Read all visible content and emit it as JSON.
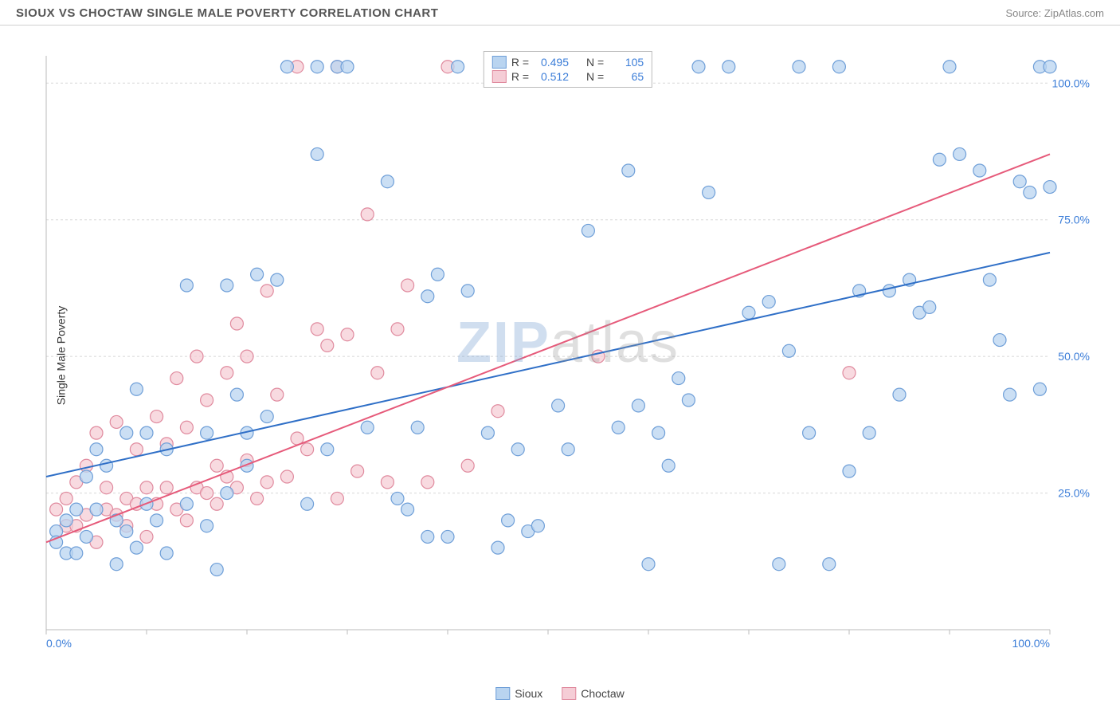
{
  "header": {
    "title": "SIOUX VS CHOCTAW SINGLE MALE POVERTY CORRELATION CHART",
    "source_label": "Source: ",
    "source_value": "ZipAtlas.com"
  },
  "chart": {
    "type": "scatter",
    "ylabel": "Single Male Poverty",
    "xlim": [
      0,
      100
    ],
    "ylim": [
      0,
      105
    ],
    "xtick_positions": [
      0,
      10,
      20,
      30,
      40,
      50,
      60,
      70,
      80,
      90,
      100
    ],
    "xtick_labels": {
      "0": "0.0%",
      "100": "100.0%"
    },
    "ytick_positions": [
      25,
      50,
      75,
      100
    ],
    "ytick_labels": [
      "25.0%",
      "50.0%",
      "75.0%",
      "100.0%"
    ],
    "grid_color": "#d8d8d8",
    "axis_color": "#bbbbbb",
    "background_color": "#ffffff",
    "tick_label_color": "#3b7dd8",
    "tick_label_fontsize": 14,
    "label_color": "#333333",
    "label_fontsize": 14,
    "marker_radius": 8,
    "marker_stroke_width": 1.2,
    "trendline_width": 2,
    "watermark_text_a": "ZIP",
    "watermark_text_b": "atlas",
    "series": [
      {
        "name": "Sioux",
        "fill_color": "#b9d4f0",
        "stroke_color": "#6f9fd8",
        "trend_color": "#2f6fc7",
        "R": "0.495",
        "N": "105",
        "trend": {
          "x1": 0,
          "y1": 28,
          "x2": 100,
          "y2": 69
        },
        "points": [
          [
            1,
            18
          ],
          [
            1,
            16
          ],
          [
            2,
            14
          ],
          [
            2,
            20
          ],
          [
            3,
            14
          ],
          [
            3,
            22
          ],
          [
            4,
            17
          ],
          [
            4,
            28
          ],
          [
            5,
            22
          ],
          [
            5,
            33
          ],
          [
            6,
            30
          ],
          [
            7,
            20
          ],
          [
            7,
            12
          ],
          [
            8,
            18
          ],
          [
            8,
            36
          ],
          [
            9,
            15
          ],
          [
            9,
            44
          ],
          [
            10,
            23
          ],
          [
            10,
            36
          ],
          [
            11,
            20
          ],
          [
            12,
            14
          ],
          [
            12,
            33
          ],
          [
            14,
            23
          ],
          [
            14,
            63
          ],
          [
            16,
            19
          ],
          [
            16,
            36
          ],
          [
            17,
            11
          ],
          [
            18,
            25
          ],
          [
            18,
            63
          ],
          [
            19,
            43
          ],
          [
            20,
            30
          ],
          [
            20,
            36
          ],
          [
            21,
            65
          ],
          [
            22,
            39
          ],
          [
            23,
            64
          ],
          [
            24,
            103
          ],
          [
            26,
            23
          ],
          [
            27,
            103
          ],
          [
            27,
            87
          ],
          [
            28,
            33
          ],
          [
            29,
            103
          ],
          [
            30,
            103
          ],
          [
            32,
            37
          ],
          [
            34,
            82
          ],
          [
            35,
            24
          ],
          [
            36,
            22
          ],
          [
            37,
            37
          ],
          [
            38,
            61
          ],
          [
            38,
            17
          ],
          [
            39,
            65
          ],
          [
            40,
            17
          ],
          [
            41,
            103
          ],
          [
            42,
            62
          ],
          [
            44,
            36
          ],
          [
            45,
            15
          ],
          [
            46,
            20
          ],
          [
            47,
            33
          ],
          [
            48,
            18
          ],
          [
            49,
            19
          ],
          [
            50,
            103
          ],
          [
            51,
            41
          ],
          [
            52,
            33
          ],
          [
            54,
            73
          ],
          [
            55,
            103
          ],
          [
            56,
            103
          ],
          [
            57,
            37
          ],
          [
            58,
            84
          ],
          [
            59,
            41
          ],
          [
            60,
            12
          ],
          [
            61,
            36
          ],
          [
            62,
            30
          ],
          [
            63,
            46
          ],
          [
            64,
            42
          ],
          [
            65,
            103
          ],
          [
            66,
            80
          ],
          [
            68,
            103
          ],
          [
            70,
            58
          ],
          [
            72,
            60
          ],
          [
            73,
            12
          ],
          [
            74,
            51
          ],
          [
            75,
            103
          ],
          [
            76,
            36
          ],
          [
            78,
            12
          ],
          [
            79,
            103
          ],
          [
            80,
            29
          ],
          [
            81,
            62
          ],
          [
            82,
            36
          ],
          [
            84,
            62
          ],
          [
            85,
            43
          ],
          [
            86,
            64
          ],
          [
            87,
            58
          ],
          [
            88,
            59
          ],
          [
            89,
            86
          ],
          [
            90,
            103
          ],
          [
            91,
            87
          ],
          [
            93,
            84
          ],
          [
            94,
            64
          ],
          [
            95,
            53
          ],
          [
            96,
            43
          ],
          [
            97,
            82
          ],
          [
            98,
            80
          ],
          [
            99,
            44
          ],
          [
            99,
            103
          ],
          [
            100,
            103
          ],
          [
            100,
            81
          ]
        ]
      },
      {
        "name": "Choctaw",
        "fill_color": "#f5cdd6",
        "stroke_color": "#e08a9e",
        "trend_color": "#e65a7a",
        "R": "0.512",
        "N": "65",
        "trend": {
          "x1": 0,
          "y1": 16,
          "x2": 100,
          "y2": 87
        },
        "points": [
          [
            1,
            22
          ],
          [
            2,
            19
          ],
          [
            2,
            24
          ],
          [
            3,
            19
          ],
          [
            3,
            27
          ],
          [
            4,
            21
          ],
          [
            4,
            30
          ],
          [
            5,
            16
          ],
          [
            5,
            36
          ],
          [
            6,
            22
          ],
          [
            6,
            26
          ],
          [
            7,
            21
          ],
          [
            7,
            38
          ],
          [
            8,
            19
          ],
          [
            8,
            24
          ],
          [
            9,
            23
          ],
          [
            9,
            33
          ],
          [
            10,
            17
          ],
          [
            10,
            26
          ],
          [
            11,
            23
          ],
          [
            11,
            39
          ],
          [
            12,
            26
          ],
          [
            12,
            34
          ],
          [
            13,
            22
          ],
          [
            13,
            46
          ],
          [
            14,
            20
          ],
          [
            14,
            37
          ],
          [
            15,
            26
          ],
          [
            15,
            50
          ],
          [
            16,
            25
          ],
          [
            16,
            42
          ],
          [
            17,
            23
          ],
          [
            17,
            30
          ],
          [
            18,
            28
          ],
          [
            18,
            47
          ],
          [
            19,
            26
          ],
          [
            19,
            56
          ],
          [
            20,
            31
          ],
          [
            20,
            50
          ],
          [
            21,
            24
          ],
          [
            22,
            27
          ],
          [
            22,
            62
          ],
          [
            23,
            43
          ],
          [
            24,
            28
          ],
          [
            25,
            35
          ],
          [
            25,
            103
          ],
          [
            26,
            33
          ],
          [
            27,
            55
          ],
          [
            28,
            52
          ],
          [
            29,
            24
          ],
          [
            29,
            103
          ],
          [
            30,
            54
          ],
          [
            31,
            29
          ],
          [
            32,
            76
          ],
          [
            33,
            47
          ],
          [
            34,
            27
          ],
          [
            35,
            55
          ],
          [
            36,
            63
          ],
          [
            38,
            27
          ],
          [
            40,
            103
          ],
          [
            42,
            30
          ],
          [
            45,
            40
          ],
          [
            50,
            103
          ],
          [
            55,
            50
          ],
          [
            80,
            47
          ]
        ]
      }
    ]
  },
  "legend_top": {
    "r_label": "R =",
    "n_label": "N ="
  },
  "legend_bottom": {
    "items": [
      "Sioux",
      "Choctaw"
    ]
  }
}
